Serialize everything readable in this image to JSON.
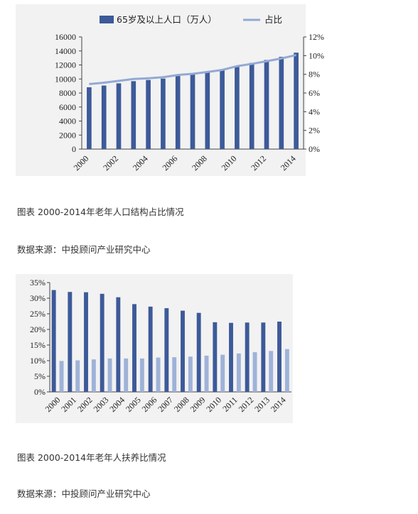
{
  "chart_data": [
    {
      "type": "bar+line",
      "legend": [
        "65岁及以上人口（万人）",
        "占比"
      ],
      "legend_position": "top",
      "categories": [
        "2000",
        "2001",
        "2002",
        "2003",
        "2004",
        "2005",
        "2006",
        "2007",
        "2008",
        "2009",
        "2010",
        "2011",
        "2012",
        "2013",
        "2014"
      ],
      "x_tick_labels": [
        "2000",
        "2002",
        "2004",
        "2006",
        "2008",
        "2010",
        "2012",
        "2014"
      ],
      "series": [
        {
          "name": "65岁及以上人口（万人）",
          "type": "bar",
          "axis": "left",
          "values": [
            8821,
            9062,
            9377,
            9692,
            9857,
            10055,
            10419,
            10636,
            10956,
            11307,
            11894,
            12288,
            12714,
            13161,
            13755
          ]
        },
        {
          "name": "占比",
          "type": "line",
          "axis": "right",
          "values": [
            6.96,
            7.1,
            7.3,
            7.5,
            7.58,
            7.69,
            7.93,
            8.05,
            8.25,
            8.47,
            8.87,
            9.12,
            9.4,
            9.7,
            10.06
          ]
        }
      ],
      "left_axis": {
        "ylim": [
          0,
          16000
        ],
        "ticks": [
          "0",
          "2000",
          "4000",
          "6000",
          "8000",
          "10000",
          "12000",
          "14000",
          "16000"
        ]
      },
      "right_axis": {
        "ylim": [
          0,
          12
        ],
        "ticks": [
          "0%",
          "2%",
          "4%",
          "6%",
          "8%",
          "10%",
          "12%"
        ]
      },
      "colors": {
        "bar": "#3d5a99",
        "line": "#93a9d4"
      },
      "grid": false
    },
    {
      "type": "bar",
      "grouped": true,
      "categories": [
        "2000",
        "2001",
        "2002",
        "2003",
        "2004",
        "2005",
        "2006",
        "2007",
        "2008",
        "2009",
        "2010",
        "2011",
        "2012",
        "2013",
        "2014"
      ],
      "series": [
        {
          "values": [
            32.6,
            32.0,
            31.9,
            31.4,
            30.3,
            28.1,
            27.3,
            26.8,
            26.0,
            25.3,
            22.3,
            22.1,
            22.2,
            22.2,
            22.5
          ]
        },
        {
          "values": [
            9.9,
            10.1,
            10.4,
            10.7,
            10.7,
            10.7,
            11.0,
            11.1,
            11.3,
            11.6,
            11.9,
            12.3,
            12.7,
            13.1,
            13.7
          ]
        }
      ],
      "left_axis": {
        "ylim": [
          0,
          35
        ],
        "ticks": [
          "0%",
          "5%",
          "10%",
          "15%",
          "20%",
          "25%",
          "30%",
          "35%"
        ]
      },
      "colors": {
        "series1": "#3d5a99",
        "series2": "#9fb2d8"
      },
      "grid": false
    }
  ],
  "captions": {
    "chart1_title": "图表 2000-2014年老年人口结构占比情况",
    "chart1_source": "数据来源：中投顾问产业研究中心",
    "chart2_title": "图表 2000-2014年老年人扶养比情况",
    "chart2_source": "数据来源：中投顾问产业研究中心"
  }
}
